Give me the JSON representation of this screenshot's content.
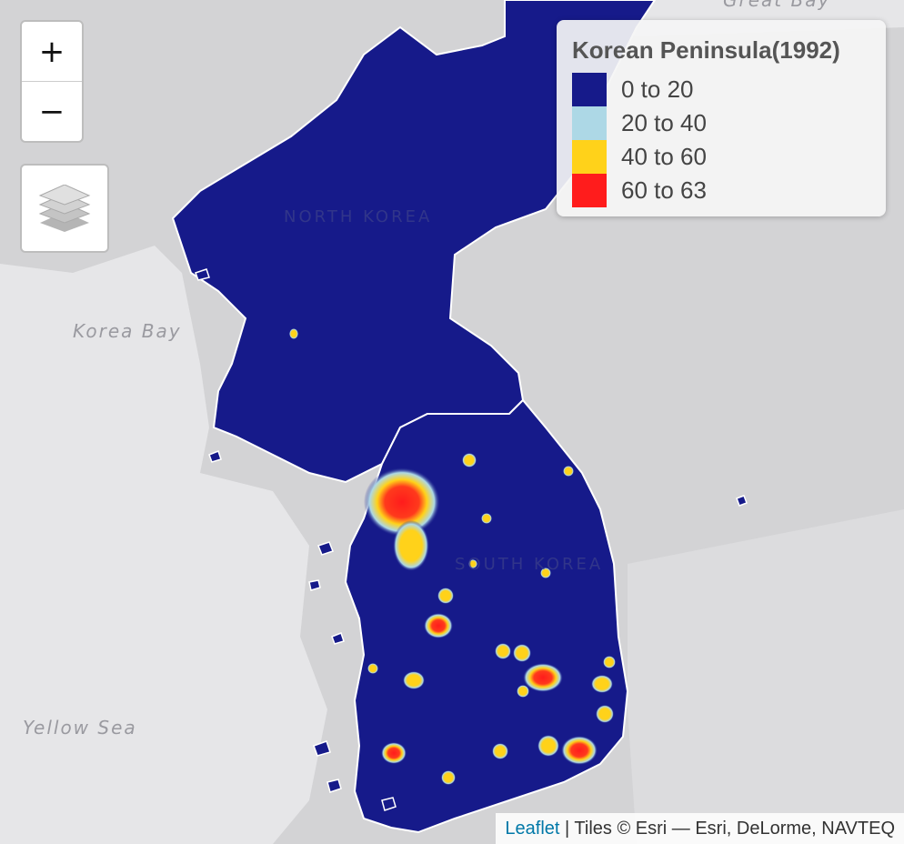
{
  "map": {
    "water_labels": [
      "Korea Bay",
      "Yellow Sea",
      "Great Bay"
    ],
    "country_labels": [
      "NORTH KOREA",
      "SOUTH KOREA"
    ]
  },
  "controls": {
    "zoom_in": "+",
    "zoom_out": "−",
    "layers_icon": "layers-icon"
  },
  "legend": {
    "title": "Korean Peninsula(1992)",
    "items": [
      {
        "label": "0 to 20",
        "color": "#161a8a"
      },
      {
        "label": "20 to 40",
        "color": "#add8e6"
      },
      {
        "label": "40 to 60",
        "color": "#ffd21a"
      },
      {
        "label": "60 to 63",
        "color": "#ff1c1c"
      }
    ]
  },
  "attribution": {
    "link": "Leaflet",
    "text": " | Tiles © Esri — Esri, DeLorme, NAVTEQ"
  },
  "colors": {
    "land": "#d3d3d5",
    "sea": "#e6e6e8",
    "raster_base": "#161a8a",
    "border": "#ffffff"
  }
}
